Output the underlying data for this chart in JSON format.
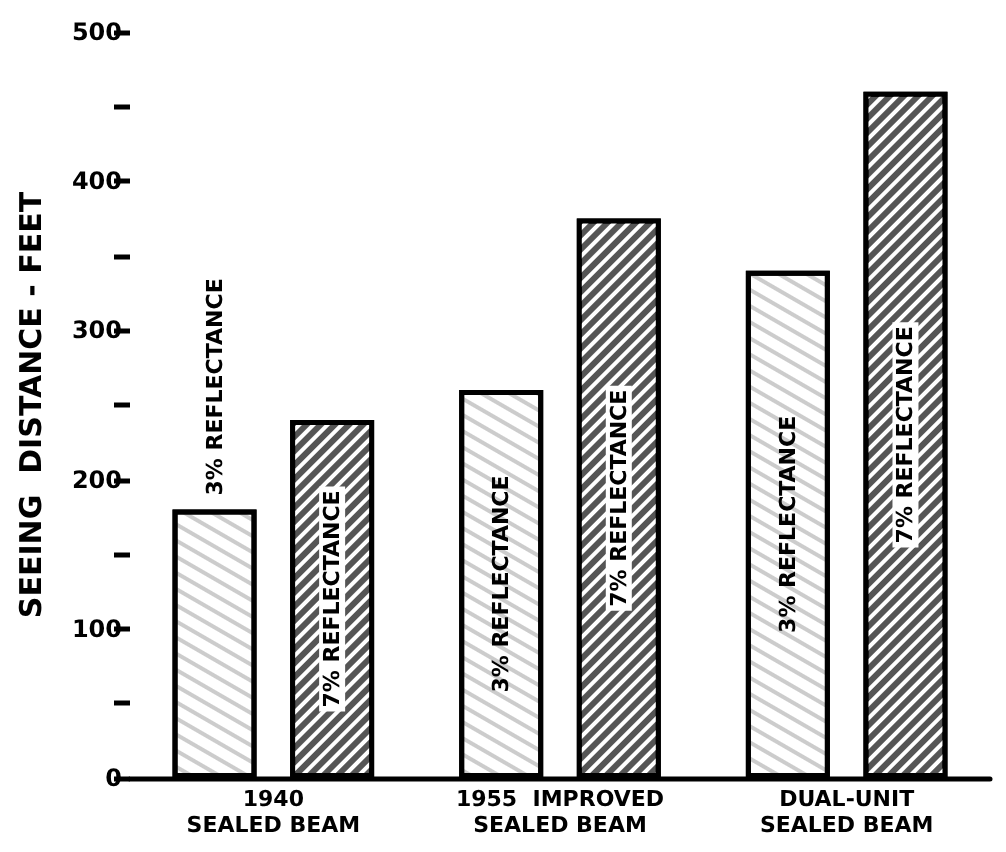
{
  "chart_data": {
    "type": "bar",
    "ylabel": "SEEING  DISTANCE - FEET",
    "categories": [
      "1940\nSEALED BEAM",
      "1955  IMPROVED\nSEALED BEAM",
      "DUAL-UNIT\nSEALED BEAM"
    ],
    "series": [
      {
        "name": "3% REFLECTANCE",
        "color": "#ffffff",
        "values": [
          180,
          260,
          340
        ]
      },
      {
        "name": "7% REFLECTANCE",
        "color": "#555555",
        "values": [
          240,
          375,
          460
        ]
      }
    ],
    "ylim": [
      0,
      500
    ],
    "yticks": [
      0,
      {
        "value": 50,
        "label": null
      },
      100,
      {
        "value": 150,
        "label": null
      },
      200,
      {
        "value": 250,
        "label": null
      },
      300,
      {
        "value": 350,
        "label": null
      },
      400,
      {
        "value": 450,
        "label": null
      },
      500
    ],
    "grid": false,
    "legend": false
  }
}
